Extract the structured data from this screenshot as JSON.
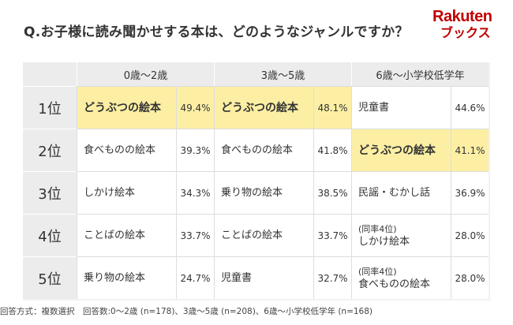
{
  "question": "Q.お子様に読み聞かせする本は、どのようなジャンルですか？",
  "logo": {
    "top": "Rakuten",
    "bottom": "ブックス"
  },
  "columns": [
    "0歳〜2歳",
    "3歳〜5歳",
    "6歳〜小学校低学年"
  ],
  "rows": [
    {
      "rank": "1位",
      "cells": [
        {
          "genre": "どうぶつの絵本",
          "pct": "49.4%",
          "highlight": true
        },
        {
          "genre": "どうぶつの絵本",
          "pct": "48.1%",
          "highlight": true
        },
        {
          "genre": "児童書",
          "pct": "44.6%",
          "highlight": false
        }
      ]
    },
    {
      "rank": "2位",
      "cells": [
        {
          "genre": "食べものの絵本",
          "pct": "39.3%",
          "highlight": false
        },
        {
          "genre": "食べものの絵本",
          "pct": "41.8%",
          "highlight": false
        },
        {
          "genre": "どうぶつの絵本",
          "pct": "41.1%",
          "highlight": true
        }
      ]
    },
    {
      "rank": "3位",
      "cells": [
        {
          "genre": "しかけ絵本",
          "pct": "34.3%",
          "highlight": false
        },
        {
          "genre": "乗り物の絵本",
          "pct": "38.5%",
          "highlight": false
        },
        {
          "genre": "民謡・むかし話",
          "pct": "36.9%",
          "highlight": false
        }
      ]
    },
    {
      "rank": "4位",
      "cells": [
        {
          "genre": "ことばの絵本",
          "pct": "33.7%",
          "highlight": false
        },
        {
          "genre": "ことばの絵本",
          "pct": "33.7%",
          "highlight": false
        },
        {
          "genre": "しかけ絵本",
          "note": "(同率4位)",
          "pct": "28.0%",
          "highlight": false
        }
      ]
    },
    {
      "rank": "5位",
      "cells": [
        {
          "genre": "乗り物の絵本",
          "pct": "24.7%",
          "highlight": false
        },
        {
          "genre": "児童書",
          "pct": "32.7%",
          "highlight": false
        },
        {
          "genre": "食べものの絵本",
          "note": "(同率4位)",
          "pct": "28.0%",
          "highlight": false
        }
      ]
    }
  ],
  "footer": "回答方式：複数選択　回答数:0〜2歳 (n=178)、3歳〜5歳 (n=208)、6歳〜小学校低学年 (n=168)"
}
